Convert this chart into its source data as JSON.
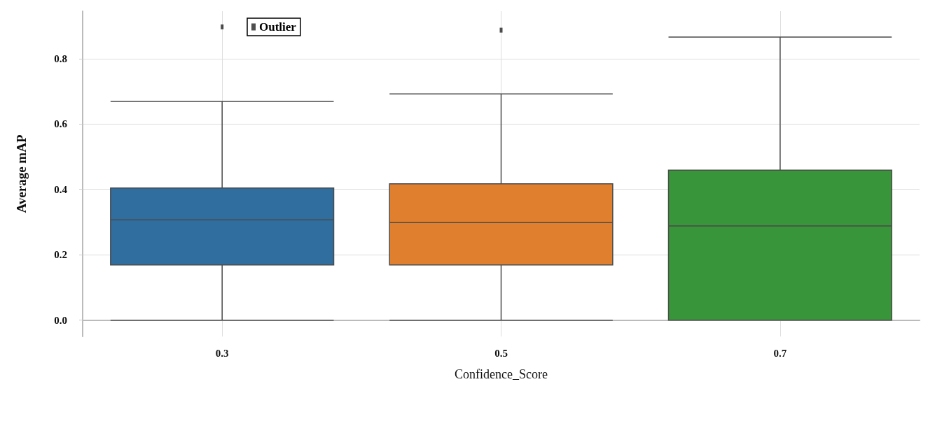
{
  "chart_data": {
    "type": "box",
    "xlabel": "Confidence_Score",
    "ylabel": "Average mAP",
    "categories": [
      "0.3",
      "0.5",
      "0.7"
    ],
    "boxes": [
      {
        "low": 0,
        "q1": 0.169,
        "median": 0.307,
        "q3": 0.404,
        "high": 0.669
      },
      {
        "low": 0,
        "q1": 0.169,
        "median": 0.298,
        "q3": 0.417,
        "high": 0.692
      },
      {
        "low": 0,
        "q1": 0,
        "median": 0.288,
        "q3": 0.459,
        "high": 0.866
      }
    ],
    "colors": [
      "#2f6e9f",
      "#e07f2e",
      "#399539"
    ],
    "series": [
      {
        "type": "scatter",
        "name": "Outlier",
        "color": "#222222",
        "x": [
          "0.3",
          "0.5"
        ],
        "values": [
          0.897,
          0.887
        ]
      }
    ],
    "marker": "square",
    "ylim": [
      -0.05,
      0.945
    ],
    "yticks": [
      {
        "value": 0,
        "label": "0.0"
      },
      0.2,
      0.4,
      0.6,
      0.8
    ],
    "grid": true,
    "legend": "top left"
  }
}
